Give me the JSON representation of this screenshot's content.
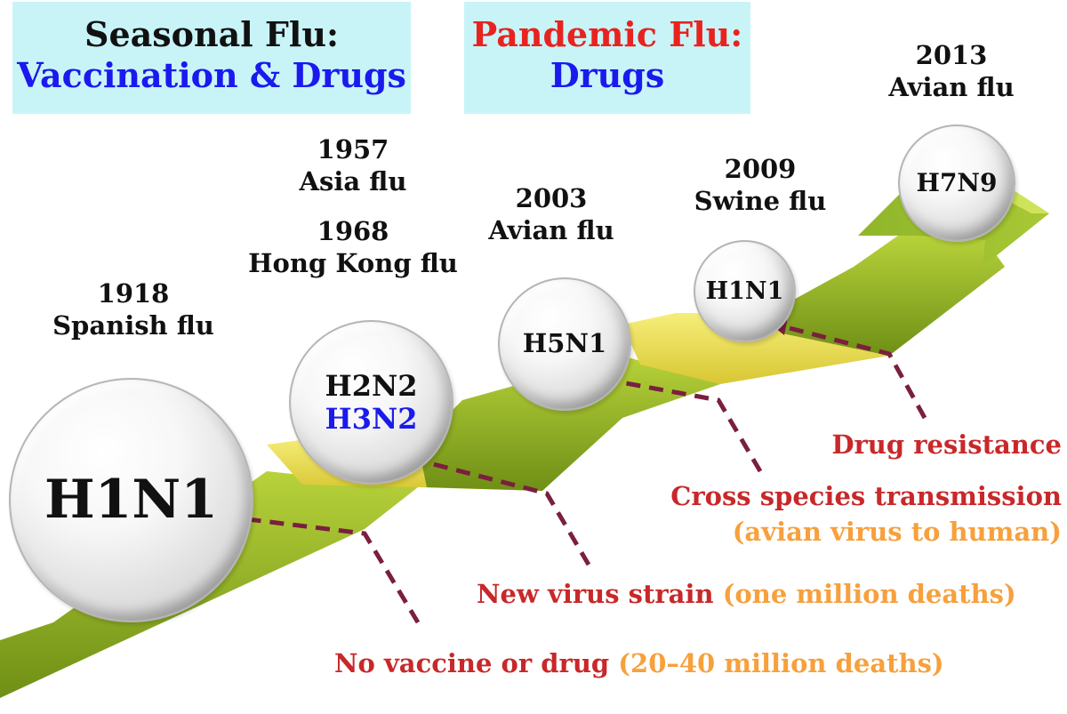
{
  "header": {
    "seasonal": {
      "title": "Seasonal Flu:",
      "subtitle": "Vaccination & Drugs"
    },
    "pandemic": {
      "title": "Pandemic Flu:",
      "subtitle": "Drugs"
    }
  },
  "events": [
    {
      "year": "1918",
      "name": "Spanish flu",
      "strains": [
        "H1N1"
      ]
    },
    {
      "year": "1957",
      "name": "Asia flu",
      "year2": "1968",
      "name2": "Hong Kong flu",
      "strains": [
        "H2N2",
        "H3N2"
      ]
    },
    {
      "year": "2003",
      "name": "Avian flu",
      "strains": [
        "H5N1"
      ]
    },
    {
      "year": "2009",
      "name": "Swine flu",
      "strains": [
        "H1N1"
      ]
    },
    {
      "year": "2013",
      "name": "Avian flu",
      "strains": [
        "H7N9"
      ]
    }
  ],
  "notes": {
    "no_vaccine": {
      "main": "No vaccine or drug",
      "detail": "(20–40 million deaths)"
    },
    "new_strain": {
      "main": "New virus strain",
      "detail": "(one million deaths)"
    },
    "cross_species": {
      "main": "Cross species transmission",
      "detail": "(avian virus to human)"
    },
    "drug_resistance": {
      "main": "Drug resistance"
    }
  },
  "colors": {
    "box_bg": "#c8f4f8",
    "blue": "#1a1aee",
    "red": "#e8231f",
    "note_red": "#c8282a",
    "note_orange": "#f7a03c",
    "arrow_green": "#8fb52a",
    "arrow_yellow": "#eee35a",
    "dashed": "#7a1f3f"
  }
}
